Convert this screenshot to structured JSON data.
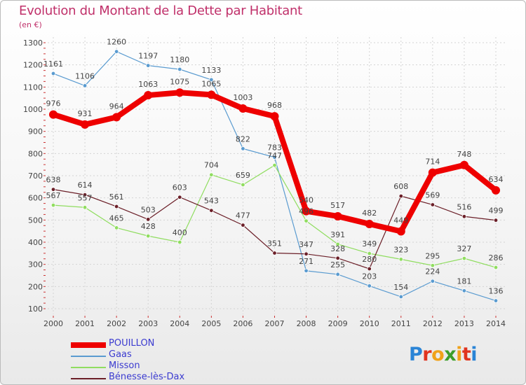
{
  "header": {
    "title": "Evolution du Montant de la Dette par Habitant",
    "subtitle": "(en €)"
  },
  "logo": {
    "letters": [
      {
        "ch": "P",
        "color": "#2a84d6"
      },
      {
        "ch": "r",
        "color": "#e0341f"
      },
      {
        "ch": "o",
        "color": "#f0a21a"
      },
      {
        "ch": "x",
        "color": "#3c9e2a"
      },
      {
        "ch": "i",
        "color": "#f0a21a"
      },
      {
        "ch": "t",
        "color": "#e0341f"
      },
      {
        "ch": "i",
        "color": "#2a84d6"
      }
    ]
  },
  "chart_data": {
    "type": "line",
    "x": [
      "2000",
      "2001",
      "2002",
      "2003",
      "2004",
      "2005",
      "2006",
      "2007",
      "2008",
      "2009",
      "2010",
      "2011",
      "2012",
      "2013",
      "2014"
    ],
    "ylim": [
      100,
      1300
    ],
    "yticks": [
      100,
      200,
      300,
      400,
      500,
      600,
      700,
      800,
      900,
      1000,
      1100,
      1200,
      1300
    ],
    "grid": true,
    "legend_position": "bottom-left",
    "series": [
      {
        "name": "POUILLON",
        "color": "#ee0000",
        "values": [
          976,
          931,
          964,
          1063,
          1075,
          1065,
          1003,
          968,
          540,
          517,
          482,
          449,
          714,
          748,
          634
        ]
      },
      {
        "name": "Gaas",
        "color": "#5a9bd0",
        "values": [
          1161,
          1106,
          1260,
          1197,
          1180,
          1133,
          822,
          783,
          271,
          255,
          203,
          154,
          224,
          181,
          136
        ]
      },
      {
        "name": "Misson",
        "color": "#90dd60",
        "values": [
          567,
          557,
          465,
          428,
          400,
          704,
          659,
          747,
          496,
          391,
          349,
          323,
          295,
          327,
          286
        ]
      },
      {
        "name": "Bénesse-lès-Dax",
        "color": "#6b1f28",
        "values": [
          638,
          614,
          561,
          503,
          603,
          543,
          477,
          351,
          347,
          328,
          280,
          608,
          569,
          516,
          499
        ]
      }
    ]
  }
}
